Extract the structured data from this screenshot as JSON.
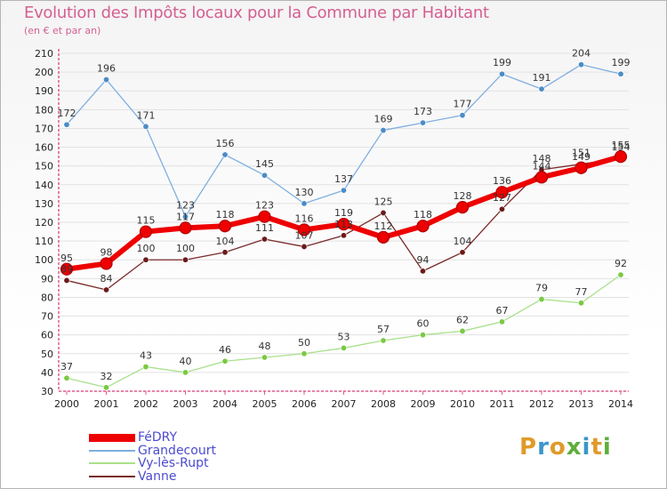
{
  "title": "Evolution des Impôts locaux pour la Commune par Habitant",
  "subtitle": "(en € et par an)",
  "brand": {
    "letters": [
      "P",
      "r",
      "o",
      "x",
      "i",
      "t",
      "i"
    ]
  },
  "colors": {
    "title": "#d45f90",
    "axis": "#e05b8f",
    "grid": "#e2e2e2",
    "legend_text": "#4b4bd0",
    "brand_letters": [
      "#e09a2a",
      "#3c95c9",
      "#e09a2a",
      "#5fae3c",
      "#3c95c9",
      "#e09a2a",
      "#5fae3c"
    ]
  },
  "chart_data": {
    "type": "line",
    "x": [
      "2000",
      "2001",
      "2002",
      "2003",
      "2004",
      "2005",
      "2006",
      "2007",
      "2008",
      "2009",
      "2010",
      "2011",
      "2012",
      "2013",
      "2014"
    ],
    "ylim": [
      30,
      210
    ],
    "yticks": [
      30,
      40,
      50,
      60,
      70,
      80,
      90,
      100,
      110,
      120,
      130,
      140,
      150,
      160,
      170,
      180,
      190,
      200,
      210
    ],
    "grid": "horizontal",
    "legend_position": "bottom-left",
    "series": [
      {
        "name": "Grandecourt",
        "color": "#4a8cc7",
        "line_color": "#7faee0",
        "width": 1.3,
        "values": [
          172,
          196,
          171,
          123,
          156,
          145,
          130,
          137,
          169,
          173,
          177,
          199,
          191,
          204,
          199
        ],
        "labels": [
          "172",
          "196",
          "171",
          "123",
          "156",
          "145",
          "130",
          "137",
          "169",
          "173",
          "177",
          "199",
          "191",
          "204",
          "199"
        ]
      },
      {
        "name": "Vy-lès-Rupt",
        "color": "#7ac943",
        "line_color": "#a8e08a",
        "width": 1.3,
        "values": [
          37,
          32,
          43,
          40,
          46,
          48,
          50,
          53,
          57,
          60,
          62,
          67,
          79,
          77,
          92
        ],
        "labels": [
          "37",
          "32",
          "43",
          "40",
          "46",
          "48",
          "50",
          "53",
          "57",
          "60",
          "62",
          "67",
          "79",
          "77",
          "92"
        ]
      },
      {
        "name": "Vanne",
        "color": "#6b1a1a",
        "line_color": "#7a2a2a",
        "width": 1.3,
        "values": [
          89,
          84,
          100,
          100,
          104,
          111,
          107,
          113,
          125,
          94,
          104,
          127,
          148,
          151,
          154
        ],
        "labels": [
          "89",
          "84",
          "100",
          "100",
          "104",
          "111",
          "107",
          "113",
          "125",
          "94",
          "104",
          "127",
          "148",
          "151",
          "154"
        ]
      },
      {
        "name": "FéDRY",
        "color": "#ee0000",
        "line_color": "#ee0000",
        "width": 6,
        "values": [
          95,
          98,
          115,
          117,
          118,
          123,
          116,
          119,
          112,
          118,
          128,
          136,
          144,
          149,
          155
        ],
        "labels": [
          "95",
          "98",
          "115",
          "117",
          "118",
          "123",
          "116",
          "119",
          "112",
          "118",
          "128",
          "136",
          "144",
          "149",
          "155"
        ]
      }
    ]
  }
}
